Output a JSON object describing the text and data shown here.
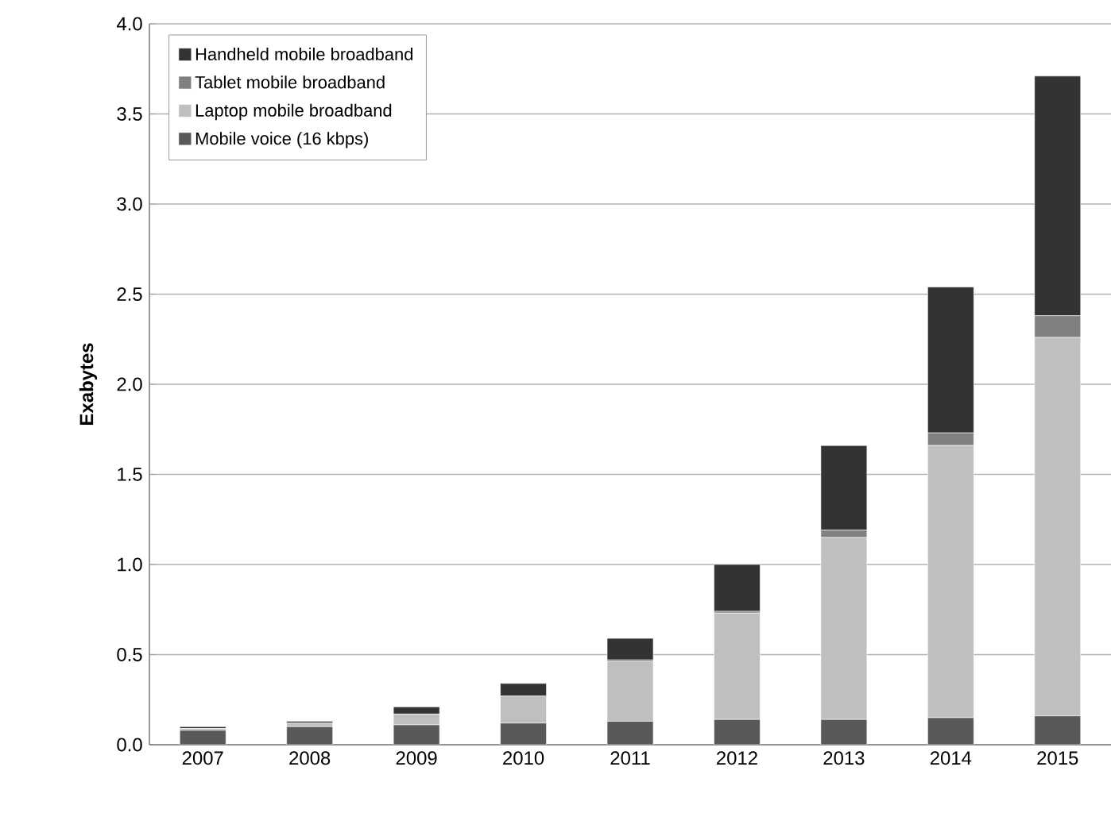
{
  "chart_data": {
    "type": "bar",
    "stacked": true,
    "ylabel": "Exabytes",
    "categories": [
      "2007",
      "2008",
      "2009",
      "2010",
      "2011",
      "2012",
      "2013",
      "2014",
      "2015"
    ],
    "series": [
      {
        "name": "Mobile voice (16 kbps)",
        "color": "#595959",
        "values": [
          0.08,
          0.1,
          0.11,
          0.12,
          0.13,
          0.14,
          0.14,
          0.15,
          0.16
        ]
      },
      {
        "name": "Laptop mobile broadband",
        "color": "#bfbfbf",
        "values": [
          0.01,
          0.02,
          0.06,
          0.15,
          0.33,
          0.59,
          1.01,
          1.51,
          2.1
        ]
      },
      {
        "name": "Tablet mobile broadband",
        "color": "#808080",
        "values": [
          0,
          0,
          0,
          0,
          0.01,
          0.01,
          0.04,
          0.07,
          0.12
        ]
      },
      {
        "name": "Handheld mobile broadband",
        "color": "#333333",
        "values": [
          0.01,
          0.01,
          0.04,
          0.07,
          0.12,
          0.26,
          0.47,
          0.81,
          1.33
        ]
      }
    ],
    "ylim": [
      0,
      4
    ],
    "yticks": [
      {
        "value": 0,
        "label": "0.0"
      },
      {
        "value": 0.5,
        "label": "0.5"
      },
      {
        "value": 1,
        "label": "1.0"
      },
      {
        "value": 1.5,
        "label": "1.5"
      },
      {
        "value": 2,
        "label": "2.0"
      },
      {
        "value": 2.5,
        "label": "2.5"
      },
      {
        "value": 3,
        "label": "3.0"
      },
      {
        "value": 3.5,
        "label": "3.5"
      },
      {
        "value": 4,
        "label": "4.0"
      }
    ],
    "grid": "y",
    "legend": "top left"
  }
}
